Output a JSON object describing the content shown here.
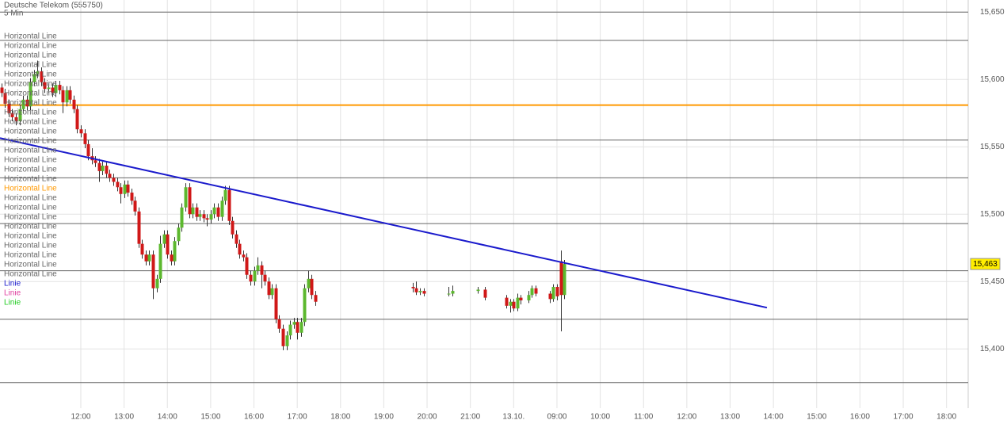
{
  "chart_data": {
    "type": "candlestick",
    "title": "Deutsche Telekom (555750)",
    "subtitle": "5 Min",
    "x": [
      -110,
      -105,
      -100,
      -95,
      -90,
      -85,
      -80,
      -75,
      -70,
      -65,
      -60,
      -55,
      -50,
      -45,
      -40,
      -35,
      -30,
      -25,
      -20,
      -15,
      -10,
      -5,
      0,
      5,
      10,
      15,
      20,
      25,
      30,
      35,
      40,
      45,
      50,
      55,
      60,
      65,
      70,
      75,
      80,
      85,
      90,
      95,
      100,
      105,
      110,
      115,
      120,
      125,
      130,
      135,
      140,
      145,
      150,
      155,
      160,
      165,
      170,
      175,
      180,
      185,
      190,
      195,
      200,
      205,
      210,
      215,
      220,
      225,
      230,
      235,
      240,
      245,
      250,
      255,
      260,
      265,
      270,
      275,
      280,
      285,
      290,
      295,
      300,
      305,
      310,
      315,
      320,
      325,
      460,
      465,
      470,
      475,
      510,
      515,
      550,
      560,
      590,
      595,
      600,
      605,
      610,
      620,
      625,
      630,
      650,
      655,
      660,
      665,
      670
    ],
    "open": [
      15.594,
      15.59,
      15.582,
      15.575,
      15.572,
      15.569,
      15.578,
      15.585,
      15.58,
      15.598,
      15.604,
      15.606,
      15.598,
      15.593,
      15.594,
      15.59,
      15.596,
      15.592,
      15.583,
      15.592,
      15.585,
      15.578,
      15.563,
      15.56,
      15.552,
      15.543,
      15.54,
      15.538,
      15.532,
      15.536,
      15.53,
      15.527,
      15.524,
      15.52,
      15.515,
      15.522,
      15.516,
      15.51,
      15.502,
      15.478,
      15.47,
      15.465,
      15.47,
      15.445,
      15.452,
      15.478,
      15.485,
      15.47,
      15.465,
      15.48,
      15.49,
      15.505,
      15.52,
      15.5,
      15.505,
      15.498,
      15.5,
      15.497,
      15.496,
      15.5,
      15.505,
      15.498,
      15.51,
      15.518,
      15.495,
      15.485,
      15.478,
      15.47,
      15.468,
      15.455,
      15.45,
      15.458,
      15.462,
      15.455,
      15.45,
      15.44,
      15.445,
      15.422,
      15.415,
      15.402,
      15.41,
      15.418,
      15.42,
      15.412,
      15.42,
      15.445,
      15.452,
      15.44,
      15.446,
      15.445,
      15.442,
      15.443,
      15.441,
      15.441,
      15.443,
      15.444,
      15.438,
      15.432,
      15.435,
      15.43,
      15.438,
      15.436,
      15.44,
      15.445,
      15.441,
      15.437,
      15.446,
      15.465,
      15.44
    ],
    "high": [
      15.597,
      15.593,
      15.585,
      15.578,
      15.575,
      15.581,
      15.588,
      15.588,
      15.601,
      15.607,
      15.614,
      15.609,
      15.601,
      15.597,
      15.597,
      15.599,
      15.599,
      15.595,
      15.595,
      15.595,
      15.588,
      15.581,
      15.566,
      15.563,
      15.555,
      15.549,
      15.543,
      15.541,
      15.539,
      15.539,
      15.533,
      15.53,
      15.527,
      15.523,
      15.525,
      15.525,
      15.519,
      15.513,
      15.505,
      15.481,
      15.473,
      15.473,
      15.473,
      15.455,
      15.484,
      15.488,
      15.488,
      15.473,
      15.483,
      15.493,
      15.508,
      15.523,
      15.523,
      15.508,
      15.508,
      15.503,
      15.503,
      15.5,
      15.503,
      15.508,
      15.508,
      15.513,
      15.521,
      15.521,
      15.498,
      15.488,
      15.481,
      15.473,
      15.471,
      15.458,
      15.461,
      15.468,
      15.465,
      15.458,
      15.453,
      15.448,
      15.448,
      15.425,
      15.418,
      15.413,
      15.421,
      15.423,
      15.423,
      15.423,
      15.448,
      15.458,
      15.455,
      15.443,
      15.449,
      15.45,
      15.445,
      15.445,
      15.446,
      15.447,
      15.446,
      15.446,
      15.44,
      15.437,
      15.437,
      15.441,
      15.44,
      15.443,
      15.447,
      15.447,
      15.443,
      15.448,
      15.448,
      15.473,
      15.466
    ],
    "low": [
      15.587,
      15.579,
      15.572,
      15.569,
      15.566,
      15.566,
      15.575,
      15.577,
      15.577,
      15.595,
      15.601,
      15.595,
      15.59,
      15.59,
      15.587,
      15.587,
      15.589,
      15.575,
      15.58,
      15.582,
      15.575,
      15.56,
      15.557,
      15.549,
      15.54,
      15.537,
      15.535,
      15.524,
      15.529,
      15.527,
      15.524,
      15.521,
      15.517,
      15.508,
      15.512,
      15.513,
      15.507,
      15.499,
      15.475,
      15.467,
      15.462,
      15.462,
      15.437,
      15.442,
      15.449,
      15.475,
      15.467,
      15.462,
      15.462,
      15.477,
      15.487,
      15.502,
      15.497,
      15.497,
      15.495,
      15.495,
      15.494,
      15.491,
      15.493,
      15.497,
      15.495,
      15.495,
      15.507,
      15.492,
      15.482,
      15.475,
      15.467,
      15.465,
      15.452,
      15.447,
      15.447,
      15.455,
      15.445,
      15.447,
      15.437,
      15.437,
      15.419,
      15.412,
      15.399,
      15.399,
      15.407,
      15.415,
      15.407,
      15.409,
      15.417,
      15.442,
      15.437,
      15.432,
      15.442,
      15.44,
      15.44,
      15.439,
      15.439,
      15.439,
      15.441,
      15.436,
      15.43,
      15.427,
      15.428,
      15.428,
      15.433,
      15.434,
      15.438,
      15.439,
      15.434,
      15.435,
      15.436,
      15.413,
      15.437
    ],
    "close": [
      15.59,
      15.582,
      15.575,
      15.572,
      15.569,
      15.578,
      15.585,
      15.58,
      15.598,
      15.604,
      15.606,
      15.598,
      15.593,
      15.594,
      15.59,
      15.596,
      15.592,
      15.583,
      15.592,
      15.585,
      15.578,
      15.563,
      15.56,
      15.552,
      15.543,
      15.54,
      15.538,
      15.532,
      15.536,
      15.53,
      15.527,
      15.524,
      15.52,
      15.515,
      15.522,
      15.516,
      15.51,
      15.502,
      15.478,
      15.47,
      15.465,
      15.47,
      15.445,
      15.452,
      15.478,
      15.485,
      15.47,
      15.465,
      15.48,
      15.49,
      15.505,
      15.52,
      15.5,
      15.505,
      15.498,
      15.5,
      15.497,
      15.496,
      15.5,
      15.505,
      15.498,
      15.51,
      15.518,
      15.495,
      15.485,
      15.478,
      15.47,
      15.468,
      15.455,
      15.45,
      15.458,
      15.462,
      15.455,
      15.45,
      15.44,
      15.445,
      15.422,
      15.415,
      15.402,
      15.41,
      15.418,
      15.42,
      15.412,
      15.42,
      15.445,
      15.452,
      15.44,
      15.435,
      15.445,
      15.442,
      15.443,
      15.441,
      15.441,
      15.443,
      15.444,
      15.438,
      15.432,
      15.435,
      15.43,
      15.438,
      15.436,
      15.44,
      15.445,
      15.441,
      15.437,
      15.446,
      15.439,
      15.44,
      15.463
    ],
    "up_color": "#5cb82e",
    "down_color": "#d01818",
    "xlim": [
      -112,
      1230
    ],
    "xticks": [
      {
        "value": 0,
        "label": "12:00"
      },
      {
        "value": 60,
        "label": "13:00"
      },
      {
        "value": 120,
        "label": "14:00"
      },
      {
        "value": 180,
        "label": "15:00"
      },
      {
        "value": 240,
        "label": "16:00"
      },
      {
        "value": 300,
        "label": "17:00"
      },
      {
        "value": 360,
        "label": "18:00"
      },
      {
        "value": 420,
        "label": "19:00"
      },
      {
        "value": 480,
        "label": "20:00"
      },
      {
        "value": 540,
        "label": "21:00"
      },
      {
        "value": 600,
        "label": "13.10."
      },
      {
        "value": 660,
        "label": "09:00"
      },
      {
        "value": 720,
        "label": "10:00"
      },
      {
        "value": 780,
        "label": "11:00"
      },
      {
        "value": 840,
        "label": "12:00"
      },
      {
        "value": 900,
        "label": "13:00"
      },
      {
        "value": 960,
        "label": "14:00"
      },
      {
        "value": 1020,
        "label": "15:00"
      },
      {
        "value": 1080,
        "label": "16:00"
      },
      {
        "value": 1140,
        "label": "17:00"
      },
      {
        "value": 1200,
        "label": "18:00"
      }
    ],
    "ylim": [
      15.356,
      15.659
    ],
    "yticks": [
      {
        "value": 15.4,
        "label": "15,400"
      },
      {
        "value": 15.45,
        "label": "15,450"
      },
      {
        "value": 15.5,
        "label": "15,500"
      },
      {
        "value": 15.55,
        "label": "15,550"
      },
      {
        "value": 15.6,
        "label": "15,600"
      },
      {
        "value": 15.65,
        "label": "15,650"
      }
    ],
    "grid": true,
    "legend": [
      {
        "name": "Horizontal Line",
        "color": "#666666"
      },
      {
        "name": "Horizontal Line",
        "color": "#666666"
      },
      {
        "name": "Horizontal Line",
        "color": "#666666"
      },
      {
        "name": "Horizontal Line",
        "color": "#666666"
      },
      {
        "name": "Horizontal Line",
        "color": "#666666"
      },
      {
        "name": "Horizontal Line",
        "color": "#666666"
      },
      {
        "name": "Horizontal Line",
        "color": "#666666"
      },
      {
        "name": "Horizontal Line",
        "color": "#666666"
      },
      {
        "name": "Horizontal Line",
        "color": "#666666"
      },
      {
        "name": "Horizontal Line",
        "color": "#666666"
      },
      {
        "name": "Horizontal Line",
        "color": "#666666"
      },
      {
        "name": "Horizontal Line",
        "color": "#666666"
      },
      {
        "name": "Horizontal Line",
        "color": "#666666"
      },
      {
        "name": "Horizontal Line",
        "color": "#666666"
      },
      {
        "name": "Horizontal Line",
        "color": "#666666"
      },
      {
        "name": "Horizontal Line",
        "color": "#666666"
      },
      {
        "name": "Horizontal Line",
        "color": "#ff9900"
      },
      {
        "name": "Horizontal Line",
        "color": "#666666"
      },
      {
        "name": "Horizontal Line",
        "color": "#666666"
      },
      {
        "name": "Horizontal Line",
        "color": "#666666"
      },
      {
        "name": "Horizontal Line",
        "color": "#666666"
      },
      {
        "name": "Horizontal Line",
        "color": "#666666"
      },
      {
        "name": "Horizontal Line",
        "color": "#666666"
      },
      {
        "name": "Horizontal Line",
        "color": "#666666"
      },
      {
        "name": "Horizontal Line",
        "color": "#666666"
      },
      {
        "name": "Horizontal Line",
        "color": "#666666"
      },
      {
        "name": "Linie",
        "color": "#1a1acc"
      },
      {
        "name": "Linie",
        "color": "#e040a0"
      },
      {
        "name": "Linie",
        "color": "#22cc22"
      }
    ],
    "hlines": [
      {
        "value": 15.65,
        "color": "#666666"
      },
      {
        "value": 15.629,
        "color": "#666666"
      },
      {
        "value": 15.581,
        "color": "#ff9900"
      },
      {
        "value": 15.555,
        "color": "#666666"
      },
      {
        "value": 15.527,
        "color": "#666666"
      },
      {
        "value": 15.493,
        "color": "#666666"
      },
      {
        "value": 15.458,
        "color": "#666666"
      },
      {
        "value": 15.422,
        "color": "#666666"
      },
      {
        "value": 15.375,
        "color": "#666666"
      }
    ],
    "trendlines": [
      {
        "x": [
          -112,
          951
        ],
        "values": [
          15.5565,
          15.4306
        ],
        "color": "#1a1acc"
      }
    ],
    "last": {
      "value": 15.463,
      "label": "15,463"
    }
  }
}
